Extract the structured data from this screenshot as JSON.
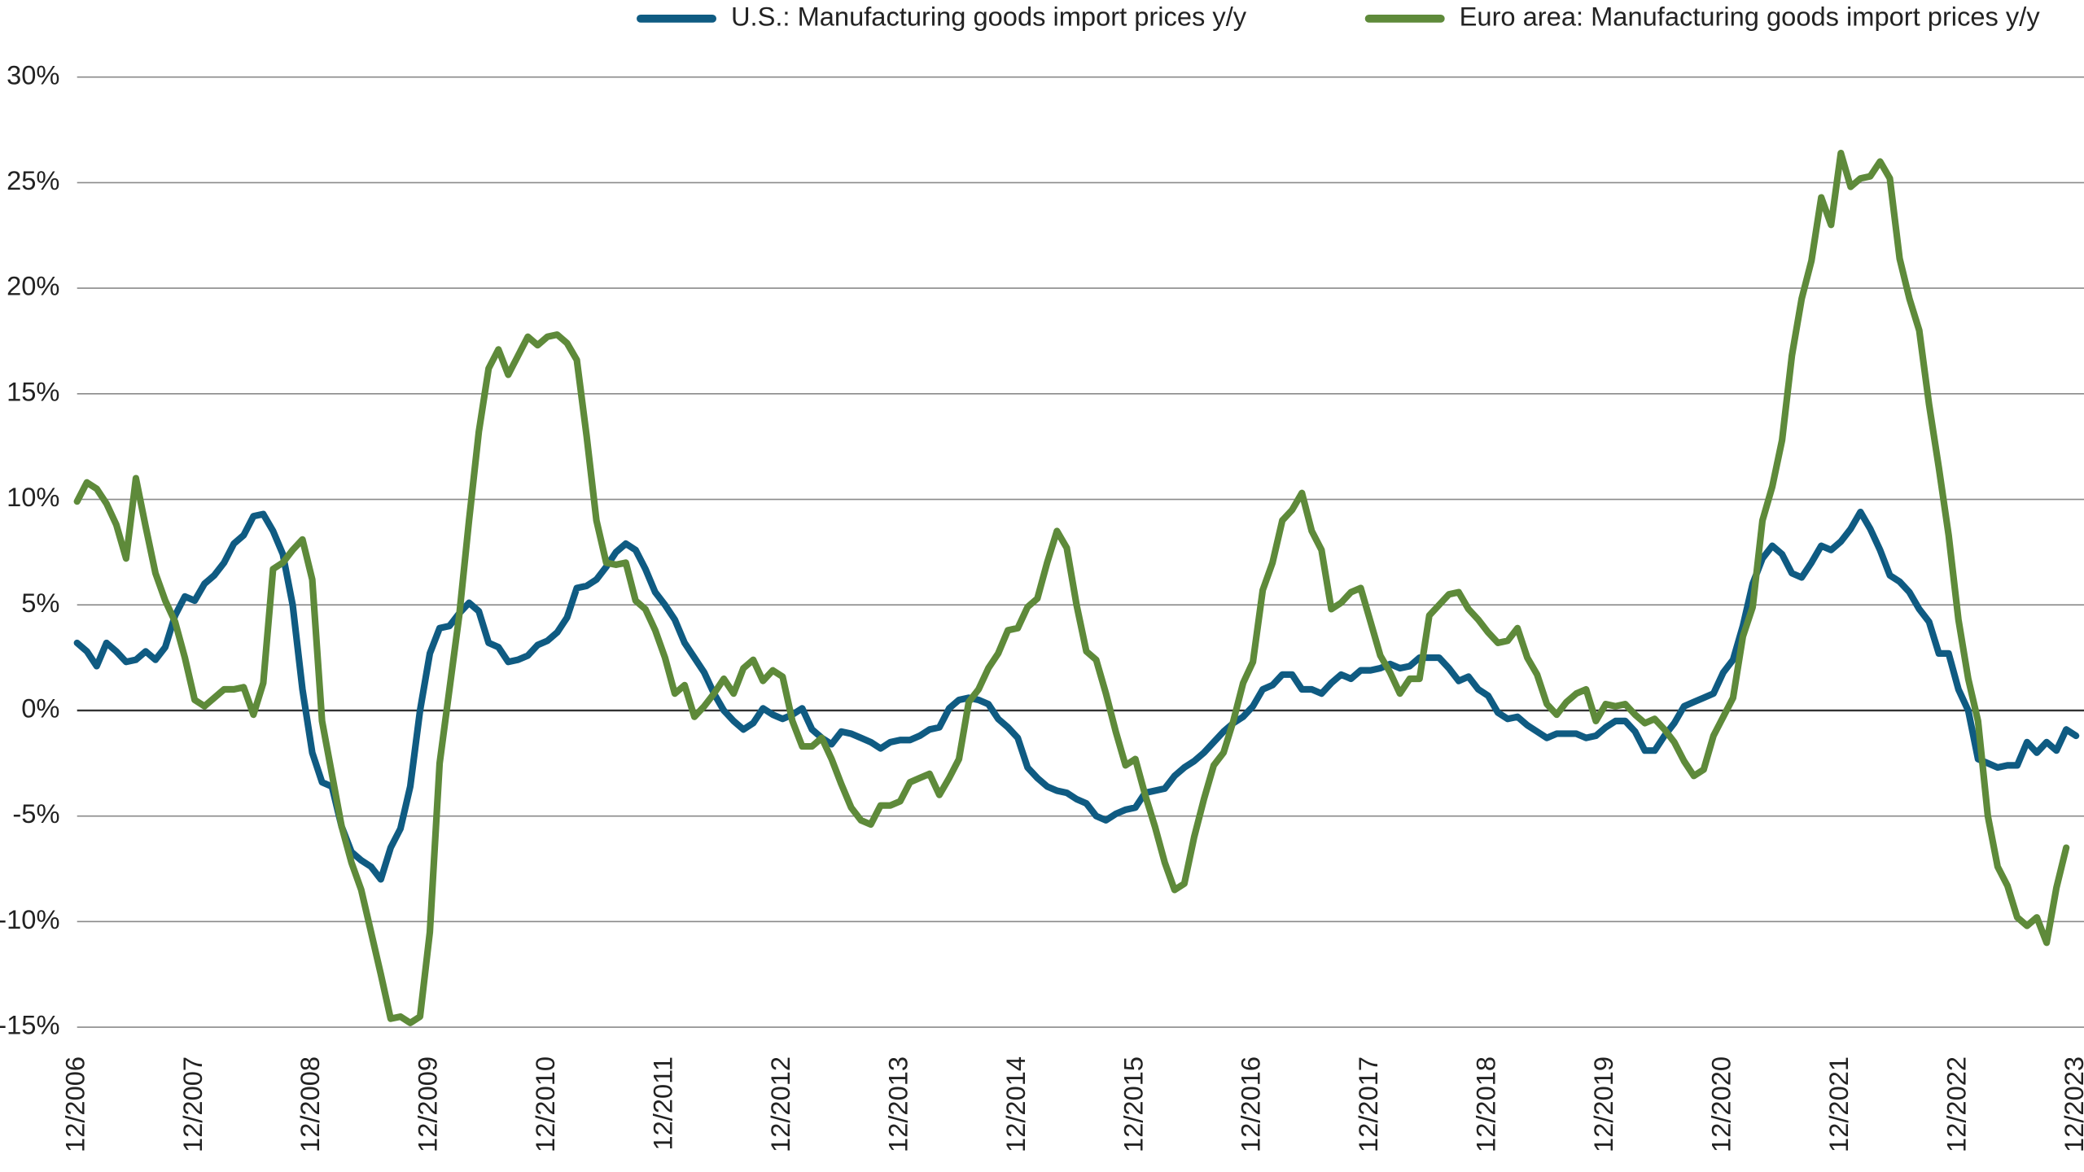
{
  "chart_data": {
    "type": "line",
    "legend": "top",
    "grid": true,
    "ylim": [
      -15,
      30
    ],
    "yticks": [
      {
        "value": 30,
        "label": "30%"
      },
      {
        "value": 25,
        "label": "25%"
      },
      {
        "value": 20,
        "label": "20%"
      },
      {
        "value": 15,
        "label": "15%"
      },
      {
        "value": 10,
        "label": "10%"
      },
      {
        "value": 5,
        "label": "5%"
      },
      {
        "value": 0,
        "label": "0%"
      },
      {
        "value": -5,
        "label": "-5%"
      },
      {
        "value": -10,
        "label": "-10%"
      },
      {
        "value": -15,
        "label": "-15%"
      }
    ],
    "categories": [
      "12/2006",
      null,
      null,
      null,
      null,
      null,
      null,
      null,
      null,
      null,
      null,
      null,
      "12/2007",
      null,
      null,
      null,
      null,
      null,
      null,
      null,
      null,
      null,
      null,
      null,
      "12/2008",
      null,
      null,
      null,
      null,
      null,
      null,
      null,
      null,
      null,
      null,
      null,
      "12/2009",
      null,
      null,
      null,
      null,
      null,
      null,
      null,
      null,
      null,
      null,
      null,
      "12/2010",
      null,
      null,
      null,
      null,
      null,
      null,
      null,
      null,
      null,
      null,
      null,
      "12/2011",
      null,
      null,
      null,
      null,
      null,
      null,
      null,
      null,
      null,
      null,
      null,
      "12/2012",
      null,
      null,
      null,
      null,
      null,
      null,
      null,
      null,
      null,
      null,
      null,
      "12/2013",
      null,
      null,
      null,
      null,
      null,
      null,
      null,
      null,
      null,
      null,
      null,
      "12/2014",
      null,
      null,
      null,
      null,
      null,
      null,
      null,
      null,
      null,
      null,
      null,
      "12/2015",
      null,
      null,
      null,
      null,
      null,
      null,
      null,
      null,
      null,
      null,
      null,
      "12/2016",
      null,
      null,
      null,
      null,
      null,
      null,
      null,
      null,
      null,
      null,
      null,
      "12/2017",
      null,
      null,
      null,
      null,
      null,
      null,
      null,
      null,
      null,
      null,
      null,
      "12/2018",
      null,
      null,
      null,
      null,
      null,
      null,
      null,
      null,
      null,
      null,
      null,
      "12/2019",
      null,
      null,
      null,
      null,
      null,
      null,
      null,
      null,
      null,
      null,
      null,
      "12/2020",
      null,
      null,
      null,
      null,
      null,
      null,
      null,
      null,
      null,
      null,
      null,
      "12/2021",
      null,
      null,
      null,
      null,
      null,
      null,
      null,
      null,
      null,
      null,
      null,
      "12/2022",
      null,
      null,
      null,
      null,
      null,
      null,
      null,
      null,
      null,
      null,
      null,
      "12/2023"
    ],
    "series": [
      {
        "name": "U.S.: Manufacturing goods import prices y/y",
        "color": "#0f5b82",
        "values": [
          3.2,
          2.8,
          2.1,
          3.2,
          2.8,
          2.3,
          2.4,
          2.8,
          2.4,
          3.0,
          4.5,
          5.4,
          5.2,
          6.0,
          6.4,
          7.0,
          7.9,
          8.3,
          9.2,
          9.3,
          8.5,
          7.4,
          5.0,
          1.0,
          -2.0,
          -3.4,
          -3.6,
          -5.5,
          -6.7,
          -7.1,
          -7.4,
          -8.0,
          -6.5,
          -5.6,
          -3.6,
          0.0,
          2.7,
          3.9,
          4.0,
          4.6,
          5.1,
          4.7,
          3.2,
          3.0,
          2.3,
          2.4,
          2.6,
          3.1,
          3.3,
          3.7,
          4.4,
          5.8,
          5.9,
          6.2,
          6.8,
          7.5,
          7.9,
          7.6,
          6.7,
          5.6,
          5.0,
          4.3,
          3.2,
          2.5,
          1.8,
          0.8,
          0.0,
          -0.5,
          -0.9,
          -0.6,
          0.1,
          -0.2,
          -0.4,
          -0.2,
          0.1,
          -0.9,
          -1.3,
          -1.6,
          -1.0,
          -1.1,
          -1.3,
          -1.5,
          -1.8,
          -1.5,
          -1.4,
          -1.4,
          -1.2,
          -0.9,
          -0.8,
          0.1,
          0.5,
          0.6,
          0.5,
          0.3,
          -0.4,
          -0.8,
          -1.3,
          -2.7,
          -3.2,
          -3.6,
          -3.8,
          -3.9,
          -4.2,
          -4.4,
          -5.0,
          -5.2,
          -4.9,
          -4.7,
          -4.6,
          -3.9,
          -3.8,
          -3.7,
          -3.1,
          -2.7,
          -2.4,
          -2.0,
          -1.5,
          -1.0,
          -0.6,
          -0.3,
          0.2,
          1.0,
          1.2,
          1.7,
          1.7,
          1.0,
          1.0,
          0.8,
          1.3,
          1.7,
          1.5,
          1.9,
          1.9,
          2.0,
          2.2,
          2.0,
          2.1,
          2.5,
          2.5,
          2.5,
          2.0,
          1.4,
          1.6,
          1.0,
          0.7,
          -0.1,
          -0.4,
          -0.3,
          -0.7,
          -1.0,
          -1.3,
          -1.1,
          -1.1,
          -1.1,
          -1.3,
          -1.2,
          -0.8,
          -0.5,
          -0.5,
          -1.0,
          -1.9,
          -1.9,
          -1.2,
          -0.6,
          0.2,
          0.4,
          0.6,
          0.8,
          1.8,
          2.4,
          4.0,
          6.0,
          7.2,
          7.8,
          7.4,
          6.5,
          6.3,
          7.0,
          7.8,
          7.6,
          8.0,
          8.6,
          9.4,
          8.6,
          7.6,
          6.4,
          6.1,
          5.6,
          4.8,
          4.2,
          2.7,
          2.7,
          1.0,
          0.0,
          -2.3,
          -2.5,
          -2.7,
          -2.6,
          -2.6,
          -1.5,
          -2.0,
          -1.5,
          -1.9,
          -0.9,
          -1.2
        ]
      },
      {
        "name": "Euro area: Manufacturing goods import prices y/y",
        "color": "#5e8a3a",
        "values": [
          9.9,
          10.8,
          10.5,
          9.8,
          8.8,
          7.2,
          11.0,
          8.7,
          6.5,
          5.2,
          4.2,
          2.5,
          0.5,
          0.2,
          0.6,
          1.0,
          1.0,
          1.1,
          -0.2,
          1.3,
          6.7,
          7.0,
          7.6,
          8.1,
          6.2,
          -0.5,
          -3.0,
          -5.5,
          -7.2,
          -8.5,
          -10.5,
          -12.5,
          -14.6,
          -14.5,
          -14.8,
          -14.5,
          -10.5,
          -2.5,
          1.0,
          4.5,
          9.0,
          13.2,
          16.2,
          17.1,
          15.9,
          16.8,
          17.7,
          17.3,
          17.7,
          17.8,
          17.4,
          16.6,
          13.0,
          9.0,
          7.0,
          6.9,
          7.0,
          5.2,
          4.8,
          3.8,
          2.5,
          0.8,
          1.2,
          -0.3,
          0.2,
          0.8,
          1.5,
          0.8,
          2.0,
          2.4,
          1.4,
          1.9,
          1.6,
          -0.5,
          -1.7,
          -1.7,
          -1.3,
          -2.3,
          -3.5,
          -4.6,
          -5.2,
          -5.4,
          -4.5,
          -4.5,
          -4.3,
          -3.4,
          -3.2,
          -3.0,
          -4.0,
          -3.2,
          -2.3,
          0.4,
          1.0,
          2.0,
          2.7,
          3.8,
          3.9,
          4.9,
          5.3,
          7.0,
          8.5,
          7.7,
          5.0,
          2.8,
          2.4,
          0.8,
          -1.0,
          -2.6,
          -2.3,
          -4.0,
          -5.5,
          -7.2,
          -8.5,
          -8.2,
          -6.0,
          -4.2,
          -2.6,
          -2.0,
          -0.5,
          1.3,
          2.3,
          5.7,
          7.0,
          9.0,
          9.5,
          10.3,
          8.5,
          7.6,
          4.8,
          5.1,
          5.6,
          5.8,
          4.2,
          2.6,
          1.8,
          0.8,
          1.5,
          1.5,
          4.5,
          5.0,
          5.5,
          5.6,
          4.8,
          4.3,
          3.7,
          3.2,
          3.3,
          3.9,
          2.5,
          1.7,
          0.3,
          -0.2,
          0.4,
          0.8,
          1.0,
          -0.5,
          0.3,
          0.2,
          0.3,
          -0.2,
          -0.6,
          -0.4,
          -0.9,
          -1.5,
          -2.4,
          -3.1,
          -2.8,
          -1.2,
          -0.3,
          0.6,
          3.5,
          4.9,
          9.0,
          10.6,
          12.8,
          16.8,
          19.5,
          21.3,
          24.3,
          23.0,
          26.4,
          24.8,
          25.2,
          25.3,
          26.0,
          25.2,
          21.4,
          19.5,
          18.0,
          14.5,
          11.5,
          8.3,
          4.3,
          1.5,
          -0.5,
          -5.0,
          -7.4,
          -8.3,
          -9.8,
          -10.2,
          -9.8,
          -11.0,
          -8.4,
          -6.5,
          null
        ]
      }
    ]
  }
}
